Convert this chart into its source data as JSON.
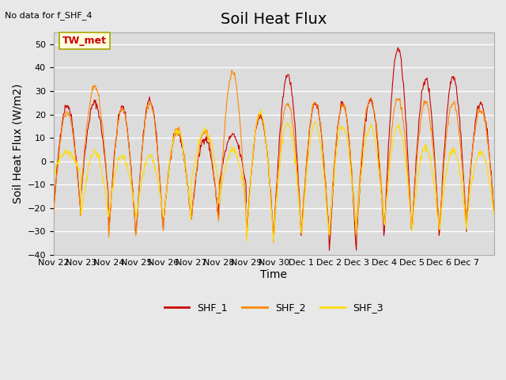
{
  "title": "Soil Heat Flux",
  "ylabel": "Soil Heat Flux (W/m2)",
  "xlabel": "Time",
  "note": "No data for f_SHF_4",
  "legend_label": "TW_met",
  "ylim": [
    -40,
    55
  ],
  "yticks": [
    -40,
    -30,
    -20,
    -10,
    0,
    10,
    20,
    30,
    40,
    50
  ],
  "bg_color": "#e8e8e8",
  "plot_bg_color": "#dcdcdc",
  "line_colors": [
    "#cc0000",
    "#ff8800",
    "#ffdd00"
  ],
  "series_labels": [
    "SHF_1",
    "SHF_2",
    "SHF_3"
  ],
  "n_days": 16,
  "points_per_day": 48,
  "xtick_labels": [
    "Nov 22",
    "Nov 23",
    "Nov 24",
    "Nov 25",
    "Nov 26",
    "Nov 27",
    "Nov 28",
    "Nov 29",
    "Nov 30",
    "Dec 1",
    "Dec 2",
    "Dec 3",
    "Dec 4",
    "Dec 5",
    "Dec 6",
    "Dec 7"
  ],
  "title_fontsize": 14,
  "label_fontsize": 10,
  "tick_fontsize": 8,
  "grid_color": "#ffffff",
  "grid_alpha": 1.0
}
